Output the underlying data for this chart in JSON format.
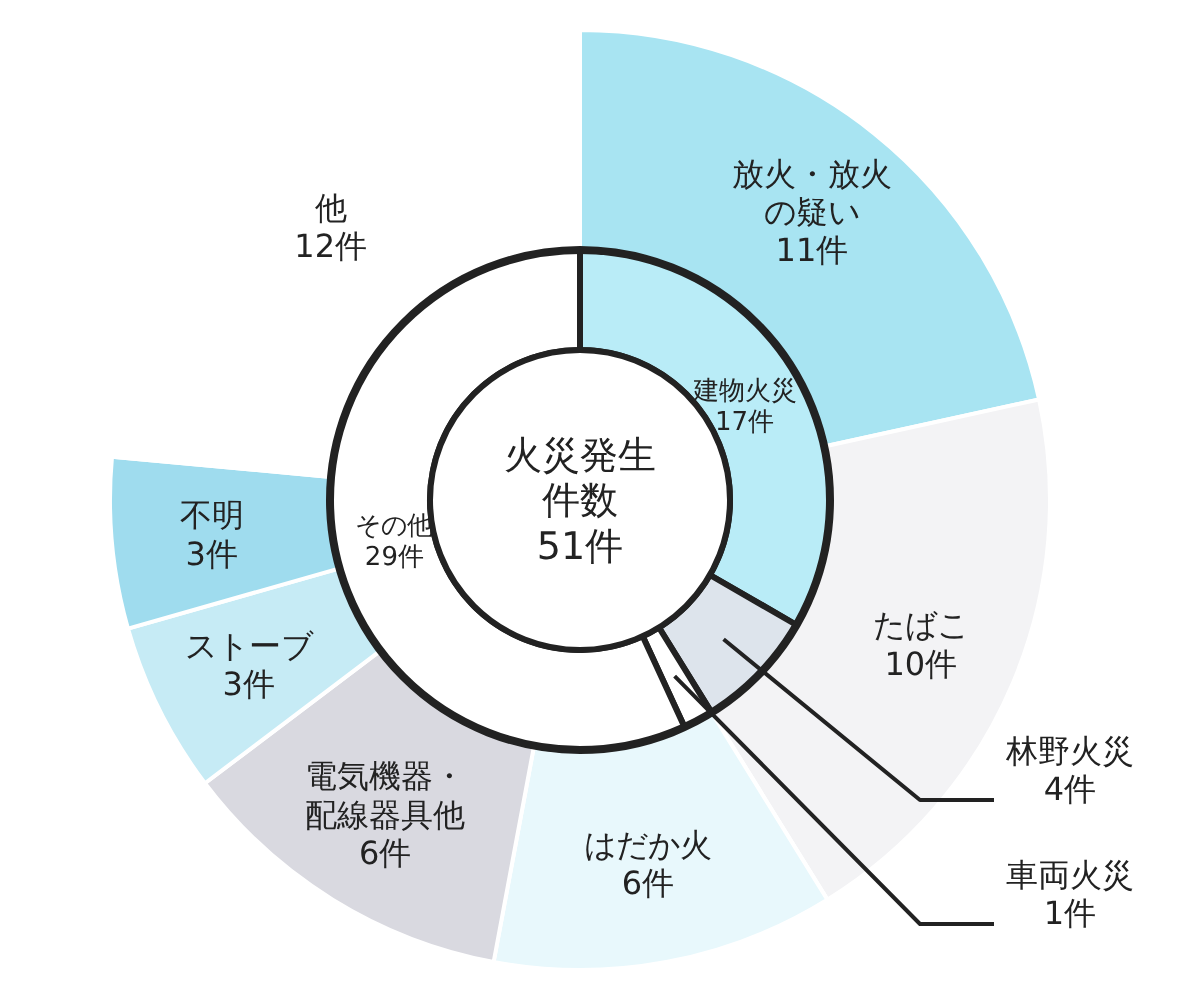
{
  "chart_data": [
    {
      "type": "donut",
      "categories": [
        "建物火災",
        "林野火災",
        "車両火災",
        "その他"
      ],
      "values": [
        17,
        4,
        1,
        29
      ],
      "colors": [
        "#b9ecf7",
        "#dde4ec",
        "#ffffff",
        "#ffffff"
      ],
      "value_labels": [
        "17件",
        "4件",
        "1件",
        "29件"
      ],
      "annotations": [
        "火災発生件数51件"
      ]
    },
    {
      "type": "donut",
      "categories": [
        "放火・放火の疑い",
        "たばこ",
        "はだか火",
        "電気機器・配線器具他",
        "ストーブ",
        "不明",
        "他"
      ],
      "values": [
        11,
        10,
        6,
        6,
        3,
        3,
        12
      ],
      "colors": [
        "#a8e4f2",
        "#f3f3f5",
        "#e8f8fc",
        "#d9d9e0",
        "#c6ebf5",
        "#9fdcee",
        "#ffffff"
      ],
      "value_labels": [
        "11件",
        "10件",
        "6件",
        "6件",
        "3件",
        "3件",
        "12件"
      ]
    }
  ]
}
